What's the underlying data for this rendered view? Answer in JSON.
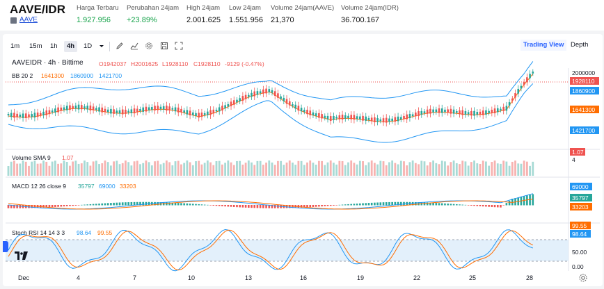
{
  "market": {
    "pair": "AAVE/IDR",
    "sub": "AAVE",
    "stats": [
      {
        "label": "Harga Terbaru",
        "value": "1.927.956",
        "green": true
      },
      {
        "label": "Perubahan 24jam",
        "value": "+23.89%",
        "green": true
      },
      {
        "label": "High 24jam",
        "value": "2.001.625",
        "green": false
      },
      {
        "label": "Low 24jam",
        "value": "1.551.956",
        "green": false
      },
      {
        "label": "Volume 24jam(AAVE)",
        "value": "21,370",
        "green": false
      },
      {
        "label": "Volume 24jam(IDR)",
        "value": "36.700.167",
        "green": false
      }
    ]
  },
  "toolbar": {
    "intervals": [
      "1m",
      "15m",
      "1h",
      "4h",
      "1D"
    ],
    "active_interval": "4h",
    "tabs": [
      "Trading View",
      "Depth"
    ],
    "active_tab": "Trading View"
  },
  "chart": {
    "symbol_line": "AAVEIDR · 4h · Bittime",
    "ohlc": {
      "o": "O1942037",
      "h": "H2001625",
      "l": "L1928110",
      "c": "C1928110",
      "chg": "-9129 (-0.47%)"
    },
    "bb": {
      "label": "BB 20 2",
      "mid": "1641300",
      "upper": "1860900",
      "lower": "1421700"
    },
    "price_axis": {
      "top": "2000000",
      "last": "1928110",
      "upper": "1860900",
      "mid": "1641300",
      "lower": "1421700"
    },
    "volume": {
      "label": "Volume SMA 9",
      "value": "1.07",
      "axis_tick": "4",
      "axis_last": "1.07"
    },
    "macd": {
      "label": "MACD 12 26 close 9",
      "hist": "35797",
      "macd": "69000",
      "signal": "33203"
    },
    "stoch": {
      "label": "Stoch RSI 14 14 3 3",
      "k": "98.64",
      "d": "99.55",
      "ticks": [
        "50.00",
        "0.00"
      ]
    },
    "x_ticks": [
      "Dec",
      "4",
      "7",
      "10",
      "13",
      "16",
      "19",
      "22",
      "25",
      "28"
    ],
    "colors": {
      "up": "#26a69a",
      "down": "#ef5350",
      "bb": "#2196f3",
      "basis": "#ff6d00",
      "macd": "#2196f3",
      "signal": "#ff6d00",
      "stoch_k": "#2196f3",
      "stoch_d": "#ff6d00"
    }
  }
}
